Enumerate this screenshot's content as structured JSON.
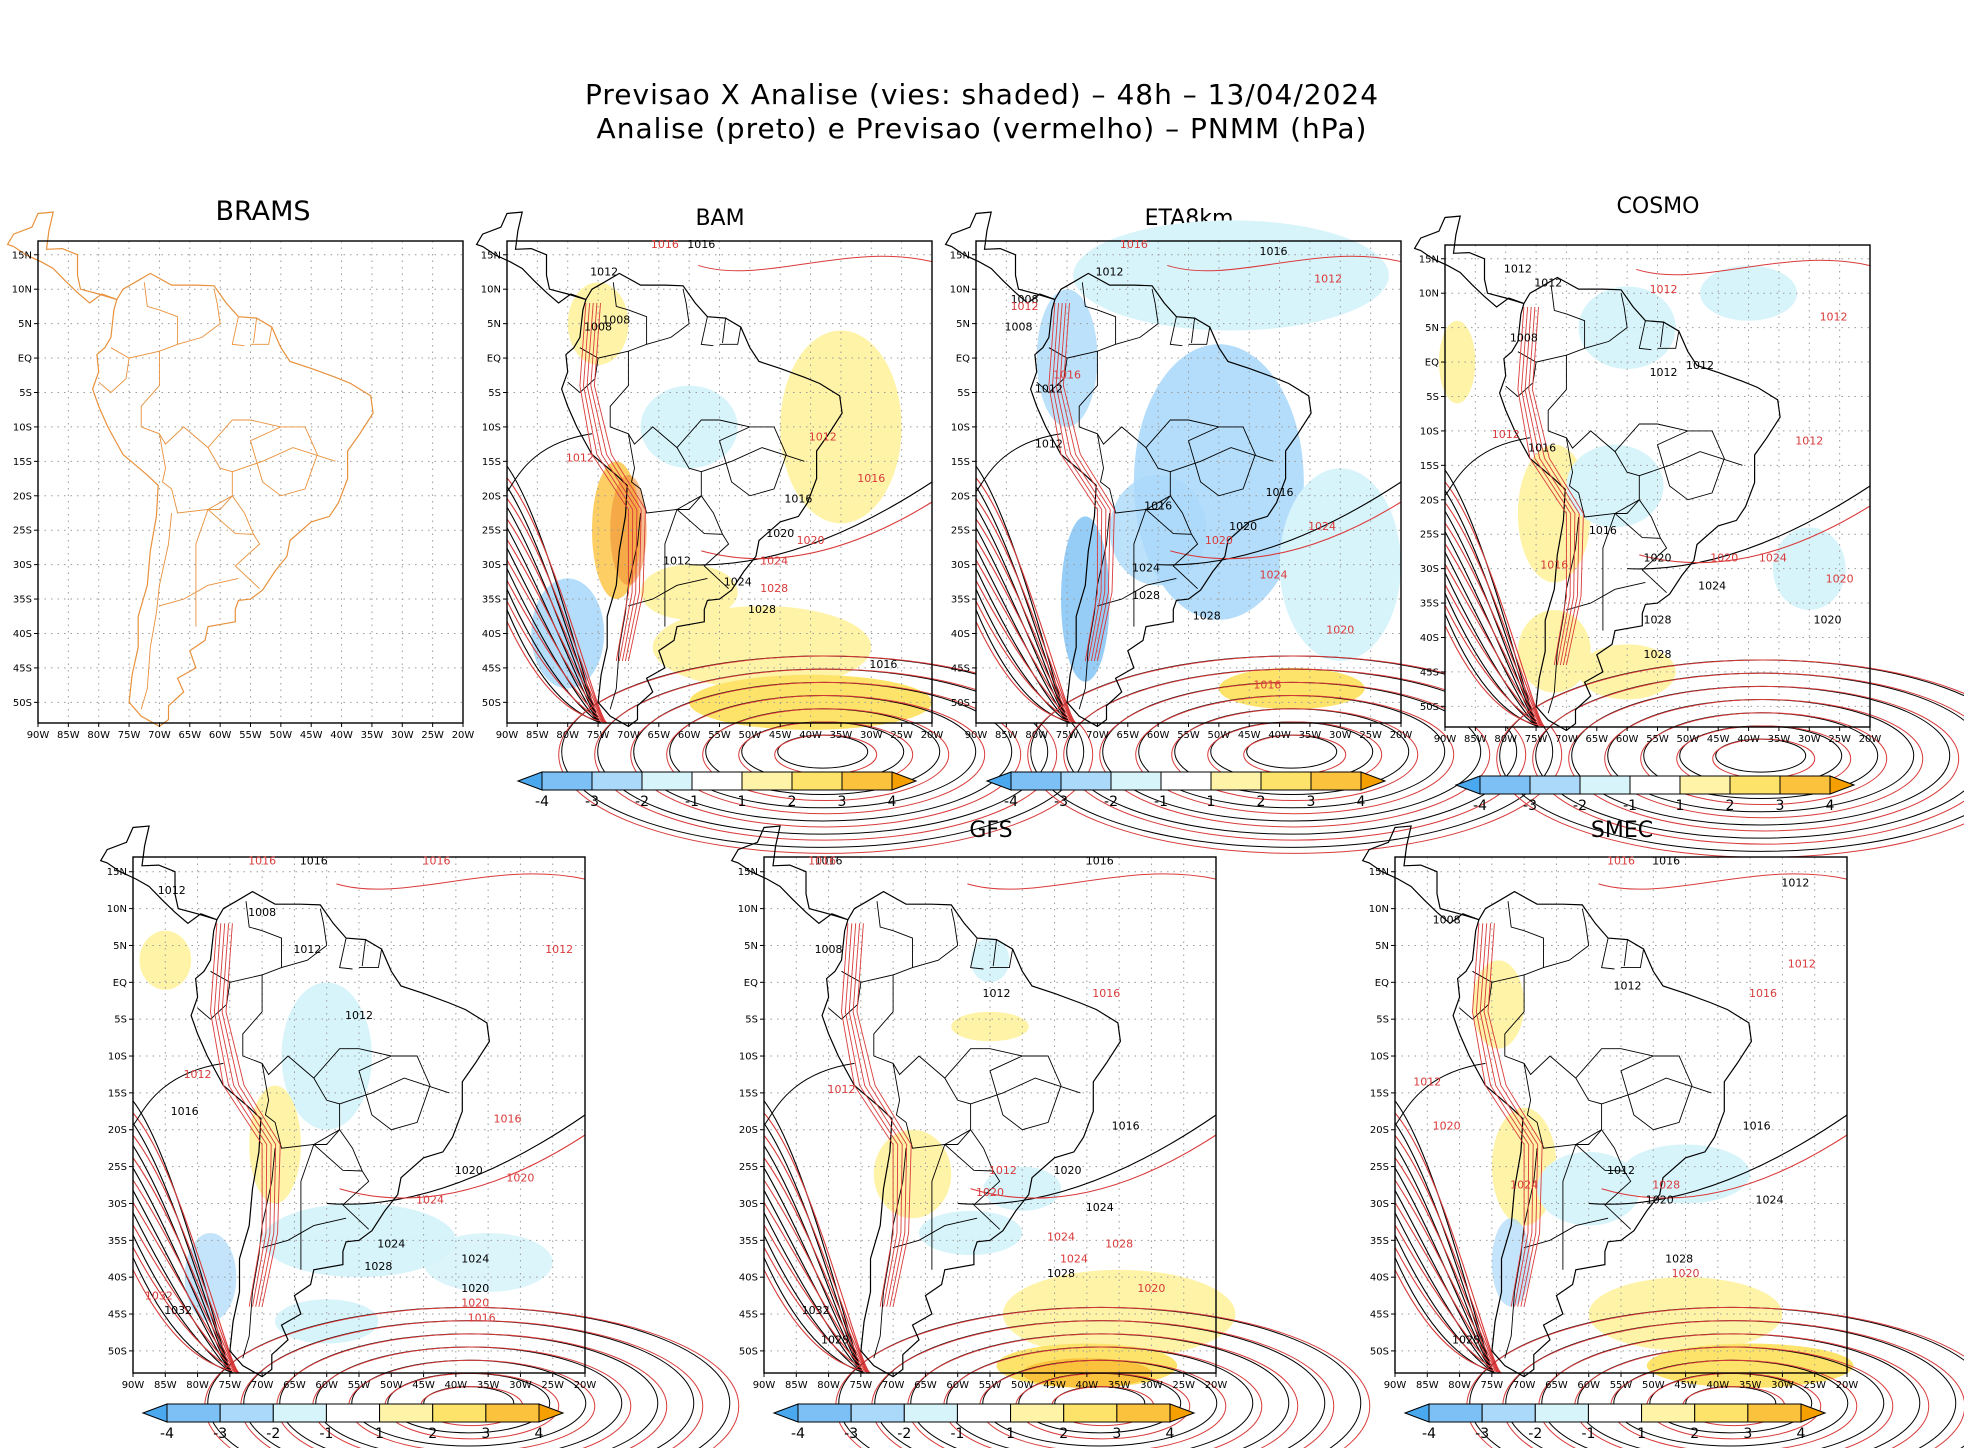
{
  "header": {
    "title_line1": "Previsao X Analise (vies: shaded) – 48h – 13/04/2024",
    "title_line2": "Analise (preto) e Previsao (vermelho) – PNMM (hPa)"
  },
  "axes": {
    "lon_labels": [
      "90W",
      "85W",
      "80W",
      "75W",
      "70W",
      "65W",
      "60W",
      "55W",
      "50W",
      "45W",
      "40W",
      "35W",
      "30W",
      "25W",
      "20W"
    ],
    "lat_labels": [
      "15N",
      "10N",
      "5N",
      "EQ",
      "5S",
      "10S",
      "15S",
      "20S",
      "25S",
      "30S",
      "35S",
      "40S",
      "45S",
      "50S"
    ]
  },
  "colorbar": {
    "labels": [
      "-4",
      "-3",
      "-2",
      "-1",
      "1",
      "2",
      "3",
      "4"
    ],
    "colors": [
      "#4aa8ee",
      "#7cc0f5",
      "#abd9fa",
      "#d8f4fb",
      "#ffffff",
      "#fff3a8",
      "#fde36a",
      "#fbc23d",
      "#f5a000"
    ]
  },
  "colors": {
    "analysis_contour": "#000000",
    "forecast_contour": "#d93a3a",
    "coastline_brams": "#e8913c"
  },
  "panels": [
    {
      "id": "brams",
      "title": "BRAMS",
      "has_colorbar": false,
      "labels_black": [],
      "labels_red": []
    },
    {
      "id": "bam",
      "title": "BAM",
      "has_colorbar": true,
      "labels_black": [
        "1016",
        "1012",
        "1008",
        "1008",
        "1012",
        "1016",
        "1020",
        "1024",
        "1028",
        "1016"
      ],
      "labels_red": [
        "1016",
        "1012",
        "1012",
        "1020",
        "1024",
        "1028",
        "1016"
      ]
    },
    {
      "id": "eta8km",
      "title": "ETA8km",
      "has_colorbar": true,
      "labels_black": [
        "1016",
        "1012",
        "1008",
        "1008",
        "1012",
        "1012",
        "1016",
        "1016",
        "1020",
        "1024",
        "1028",
        "1028"
      ],
      "labels_red": [
        "1016",
        "1012",
        "1012",
        "1016",
        "1020",
        "1024",
        "1020",
        "1024",
        "1016"
      ]
    },
    {
      "id": "cosmo",
      "title": "COSMO",
      "has_colorbar": true,
      "labels_black": [
        "1012",
        "1012",
        "1008",
        "1012",
        "1012",
        "1016",
        "1016",
        "1020",
        "1024",
        "1028",
        "1028",
        "1020"
      ],
      "labels_red": [
        "1012",
        "1012",
        "1012",
        "1012",
        "1016",
        "1020",
        "1024",
        "1020"
      ]
    },
    {
      "id": "panel5",
      "title": "",
      "has_colorbar": true,
      "labels_black": [
        "1016",
        "1012",
        "1008",
        "1012",
        "1012",
        "1016",
        "1020",
        "1024",
        "1028",
        "1032",
        "1024",
        "1020"
      ],
      "labels_red": [
        "1016",
        "1016",
        "1012",
        "1012",
        "1016",
        "1020",
        "1024",
        "1020",
        "1016",
        "1032"
      ]
    },
    {
      "id": "gfs",
      "title": "GFS",
      "has_colorbar": true,
      "labels_black": [
        "1016",
        "1016",
        "1008",
        "1012",
        "1016",
        "1020",
        "1024",
        "1028",
        "1032",
        "1028"
      ],
      "labels_red": [
        "1016",
        "1012",
        "1012",
        "1016",
        "1020",
        "1024",
        "1028",
        "1024",
        "1020"
      ]
    },
    {
      "id": "smec",
      "title": "SMEC",
      "has_colorbar": true,
      "labels_black": [
        "1016",
        "1012",
        "1008",
        "1012",
        "1016",
        "1012",
        "1020",
        "1024",
        "1028",
        "1028"
      ],
      "labels_red": [
        "1016",
        "1012",
        "1012",
        "1016",
        "1020",
        "1024",
        "1028",
        "1020"
      ]
    }
  ]
}
